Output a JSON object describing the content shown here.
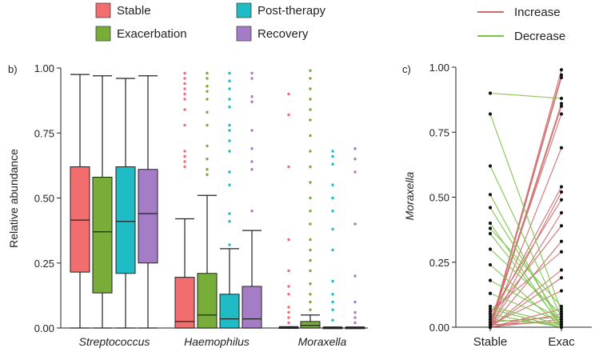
{
  "chart_data": [
    {
      "type": "box",
      "panel_label": "b)",
      "ylabel": "Relative abundance",
      "ylim": [
        0,
        1
      ],
      "yticks": [
        "0.00",
        "0.25",
        "0.50",
        "0.75",
        "1.00"
      ],
      "categories": [
        "Streptococcus",
        "Haemophilus",
        "Moraxella"
      ],
      "legend": [
        {
          "name": "Stable",
          "color": "#f26d6d"
        },
        {
          "name": "Post-therapy",
          "color": "#1fbcc6"
        },
        {
          "name": "Exacerbation",
          "color": "#79ad3a"
        },
        {
          "name": "Recovery",
          "color": "#a57dc6"
        }
      ],
      "boxes": [
        {
          "category": "Streptococcus",
          "group": "Stable",
          "q1": 0.215,
          "median": 0.415,
          "q3": 0.62,
          "whisker_low": 0.0,
          "whisker_high": 0.975
        },
        {
          "category": "Streptococcus",
          "group": "Exacerbation",
          "q1": 0.135,
          "median": 0.37,
          "q3": 0.58,
          "whisker_low": 0.0,
          "whisker_high": 0.97
        },
        {
          "category": "Streptococcus",
          "group": "Post-therapy",
          "q1": 0.21,
          "median": 0.41,
          "q3": 0.62,
          "whisker_low": 0.0,
          "whisker_high": 0.96
        },
        {
          "category": "Streptococcus",
          "group": "Recovery",
          "q1": 0.25,
          "median": 0.44,
          "q3": 0.61,
          "whisker_low": 0.0,
          "whisker_high": 0.97
        },
        {
          "category": "Haemophilus",
          "group": "Stable",
          "q1": 0.0,
          "median": 0.025,
          "q3": 0.195,
          "whisker_low": 0.0,
          "whisker_high": 0.42,
          "outliers": [
            0.62,
            0.64,
            0.66,
            0.68,
            0.78,
            0.84,
            0.88,
            0.9,
            0.92,
            0.94,
            0.96,
            0.98
          ]
        },
        {
          "category": "Haemophilus",
          "group": "Exacerbation",
          "q1": 0.0,
          "median": 0.05,
          "q3": 0.21,
          "whisker_low": 0.0,
          "whisker_high": 0.51,
          "outliers": [
            0.59,
            0.61,
            0.65,
            0.7,
            0.78,
            0.83,
            0.88,
            0.91,
            0.93,
            0.96,
            0.98
          ]
        },
        {
          "category": "Haemophilus",
          "group": "Post-therapy",
          "q1": 0.0,
          "median": 0.035,
          "q3": 0.13,
          "whisker_low": 0.0,
          "whisker_high": 0.305,
          "outliers": [
            0.32,
            0.41,
            0.44,
            0.55,
            0.6,
            0.68,
            0.72,
            0.76,
            0.78,
            0.85,
            0.88,
            0.92,
            0.95,
            0.98
          ]
        },
        {
          "category": "Haemophilus",
          "group": "Recovery",
          "q1": 0.0,
          "median": 0.035,
          "q3": 0.16,
          "whisker_low": 0.0,
          "whisker_high": 0.375,
          "outliers": [
            0.45,
            0.61,
            0.64,
            0.69,
            0.76,
            0.87,
            0.89,
            0.96,
            0.98
          ]
        },
        {
          "category": "Moraxella",
          "group": "Stable",
          "q1": 0.0,
          "median": 0.0,
          "q3": 0.003,
          "whisker_low": 0.0,
          "whisker_high": 0.005,
          "outliers": [
            0.02,
            0.04,
            0.06,
            0.08,
            0.13,
            0.16,
            0.22,
            0.34,
            0.62,
            0.82,
            0.9
          ]
        },
        {
          "category": "Moraxella",
          "group": "Exacerbation",
          "q1": 0.0,
          "median": 0.01,
          "q3": 0.025,
          "whisker_low": 0.0,
          "whisker_high": 0.05,
          "outliers": [
            0.07,
            0.1,
            0.13,
            0.17,
            0.22,
            0.26,
            0.3,
            0.34,
            0.4,
            0.45,
            0.5,
            0.56,
            0.62,
            0.68,
            0.74,
            0.8,
            0.84,
            0.88,
            0.92,
            0.96,
            0.99
          ]
        },
        {
          "category": "Moraxella",
          "group": "Post-therapy",
          "q1": 0.0,
          "median": 0.0,
          "q3": 0.002,
          "whisker_low": 0.0,
          "whisker_high": 0.004,
          "outliers": [
            0.03,
            0.07,
            0.1,
            0.13,
            0.18,
            0.3,
            0.38,
            0.45,
            0.5,
            0.55,
            0.63,
            0.66,
            0.68
          ]
        },
        {
          "category": "Moraxella",
          "group": "Recovery",
          "q1": 0.0,
          "median": 0.0,
          "q3": 0.002,
          "whisker_low": 0.0,
          "whisker_high": 0.004,
          "outliers": [
            0.02,
            0.04,
            0.06,
            0.1,
            0.2,
            0.4,
            0.6,
            0.65,
            0.69
          ]
        }
      ]
    },
    {
      "type": "paired_line",
      "panel_label": "c)",
      "ylabel": "Moraxella",
      "ylim": [
        0,
        1
      ],
      "yticks": [
        "0.00",
        "0.25",
        "0.50",
        "0.75",
        "1.00"
      ],
      "x": [
        "Stable",
        "Exac"
      ],
      "legend": [
        {
          "name": "Increase",
          "color": "#cf6b6b"
        },
        {
          "name": "Decrease",
          "color": "#7bc24a"
        }
      ],
      "pairs": [
        [
          0.0,
          0.99
        ],
        [
          0.0,
          0.97
        ],
        [
          0.0,
          0.96
        ],
        [
          0.01,
          0.86
        ],
        [
          0.0,
          0.85
        ],
        [
          0.02,
          0.82
        ],
        [
          0.0,
          0.69
        ],
        [
          0.03,
          0.54
        ],
        [
          0.0,
          0.52
        ],
        [
          0.05,
          0.49
        ],
        [
          0.0,
          0.44
        ],
        [
          0.04,
          0.39
        ],
        [
          0.0,
          0.33
        ],
        [
          0.06,
          0.29
        ],
        [
          0.0,
          0.22
        ],
        [
          0.0,
          0.19
        ],
        [
          0.01,
          0.14
        ],
        [
          0.0,
          0.07
        ],
        [
          0.0,
          0.05
        ],
        [
          0.02,
          0.04
        ],
        [
          0.0,
          0.03
        ],
        [
          0.01,
          0.02
        ],
        [
          0.9,
          0.88
        ],
        [
          0.82,
          0.06
        ],
        [
          0.62,
          0.04
        ],
        [
          0.51,
          0.0
        ],
        [
          0.46,
          0.02
        ],
        [
          0.4,
          0.0
        ],
        [
          0.38,
          0.08
        ],
        [
          0.36,
          0.01
        ],
        [
          0.3,
          0.05
        ],
        [
          0.24,
          0.0
        ],
        [
          0.18,
          0.03
        ],
        [
          0.13,
          0.02
        ],
        [
          0.08,
          0.01
        ],
        [
          0.07,
          0.0
        ],
        [
          0.05,
          0.0
        ],
        [
          0.03,
          0.01
        ]
      ]
    }
  ]
}
